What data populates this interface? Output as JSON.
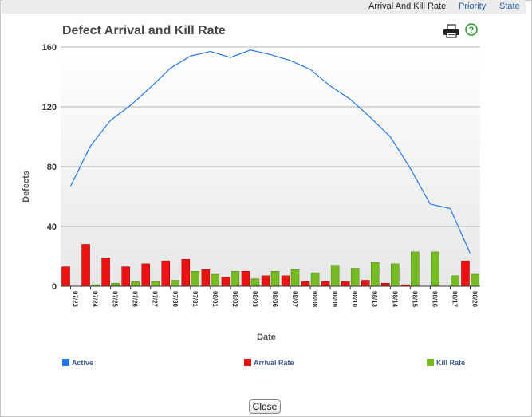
{
  "tabs": [
    {
      "label": "Arrival And Kill Rate",
      "active": true
    },
    {
      "label": "Priority",
      "active": false
    },
    {
      "label": "State",
      "active": false
    }
  ],
  "icons": {
    "print": "printer-icon",
    "help": "help-icon"
  },
  "close_label": "Close",
  "colors": {
    "active": "#2277ee",
    "arrival": "#ee1111",
    "kill": "#77bb22"
  },
  "chart_data": {
    "type": "bar",
    "title": "Defect Arrival and Kill Rate",
    "xlabel": "Date",
    "ylabel": "Defects",
    "ylim": [
      0,
      160
    ],
    "yticks": [
      0,
      40,
      80,
      120,
      160
    ],
    "grid": true,
    "legend_position": "bottom",
    "categories": [
      "07/23",
      "07/24",
      "07/25",
      "07/26",
      "07/27",
      "07/30",
      "07/31",
      "08/01",
      "08/02",
      "08/03",
      "08/06",
      "08/07",
      "08/08",
      "08/09",
      "08/10",
      "08/13",
      "08/14",
      "08/15",
      "08/16",
      "08/17",
      "08/20"
    ],
    "series": [
      {
        "name": "Active",
        "kind": "line",
        "values": [
          67,
          94,
          111,
          121,
          133,
          146,
          154,
          157,
          153,
          158,
          155,
          151,
          145,
          134,
          125,
          113,
          100,
          79,
          55,
          52,
          22
        ]
      },
      {
        "name": "Arrival Rate",
        "kind": "bar",
        "values": [
          13,
          28,
          19,
          13,
          15,
          17,
          18,
          11,
          6,
          10,
          7,
          7,
          3,
          3,
          3,
          4,
          2,
          1,
          0,
          0,
          17
        ]
      },
      {
        "name": "Kill Rate",
        "kind": "bar",
        "values": [
          0,
          1,
          2,
          3,
          3,
          4,
          10,
          8,
          10,
          5,
          10,
          11,
          9,
          14,
          12,
          16,
          15,
          23,
          23,
          7,
          8
        ]
      }
    ]
  }
}
